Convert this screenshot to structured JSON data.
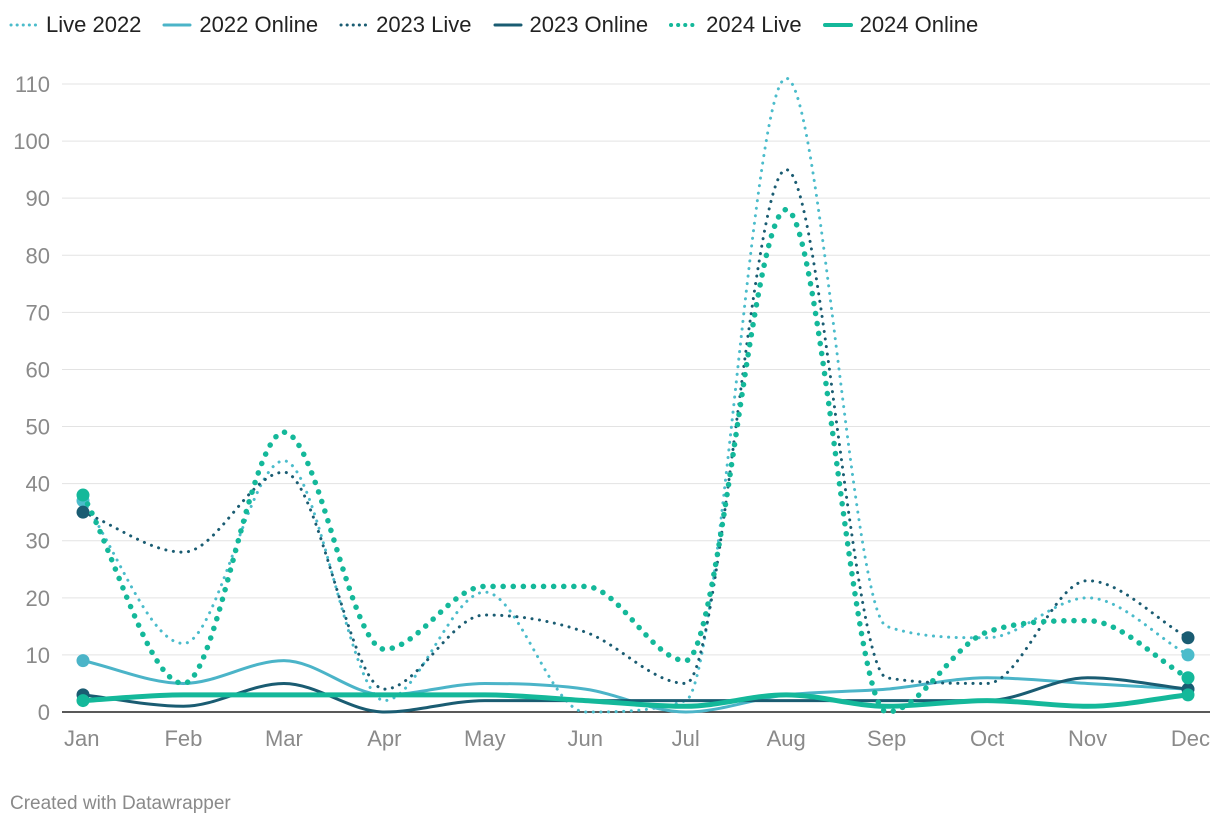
{
  "chart_data": {
    "type": "line",
    "categories": [
      "Jan",
      "Feb",
      "Mar",
      "Apr",
      "May",
      "Jun",
      "Jul",
      "Aug",
      "Sep",
      "Oct",
      "Nov",
      "Dec"
    ],
    "ylim": [
      0,
      110
    ],
    "yticks": [
      0,
      10,
      20,
      30,
      40,
      50,
      60,
      70,
      80,
      90,
      100,
      110
    ],
    "grid": true,
    "legend_position": "top-left",
    "series": [
      {
        "name": "Live 2022",
        "style": "dotted",
        "color": "#4bbccb",
        "values": [
          37,
          12,
          44,
          2,
          21,
          0,
          2,
          111,
          15,
          13,
          20,
          10
        ]
      },
      {
        "name": "2022 Online",
        "style": "solid",
        "color": "#4bb4c8",
        "values": [
          9,
          5,
          9,
          3,
          5,
          4,
          0,
          3,
          4,
          6,
          5,
          4
        ]
      },
      {
        "name": "2023 Live",
        "style": "dotted",
        "color": "#1a5c72",
        "values": [
          35,
          28,
          42,
          4,
          17,
          14,
          5,
          95,
          6,
          5,
          23,
          13
        ]
      },
      {
        "name": "2023 Online",
        "style": "solid",
        "color": "#1a5c72",
        "values": [
          3,
          1,
          5,
          0,
          2,
          2,
          2,
          2,
          2,
          2,
          6,
          4
        ]
      },
      {
        "name": "2024 Live",
        "style": "dotted-bold",
        "color": "#14b89a",
        "values": [
          38,
          5,
          49,
          11,
          22,
          22,
          9,
          88,
          0,
          14,
          16,
          6
        ]
      },
      {
        "name": "2024 Online",
        "style": "solid-bold",
        "color": "#14b89a",
        "values": [
          2,
          3,
          3,
          3,
          3,
          2,
          1,
          3,
          1,
          2,
          1,
          3
        ]
      }
    ]
  },
  "credit": "Created with Datawrapper"
}
